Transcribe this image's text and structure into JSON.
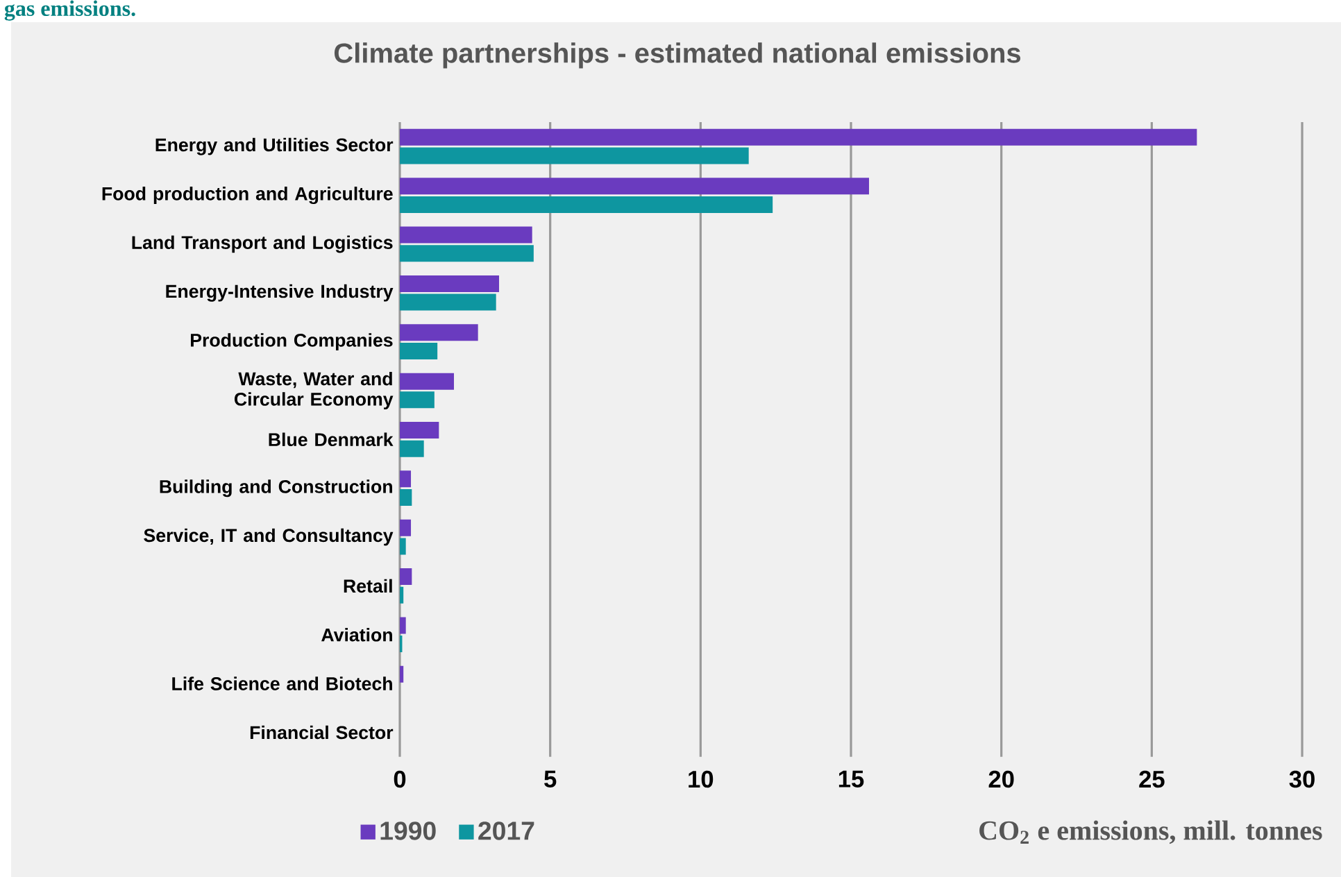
{
  "chart_data": {
    "type": "bar",
    "orientation": "horizontal",
    "title": "Climate partnerships - estimated national emissions",
    "xlabel": "CO$_{2}$ e emissions, mill. tonnes",
    "annotations": [
      "gas emissions."
    ],
    "categories": [
      "Energy and Utilities Sector",
      "Food production and Agriculture",
      "Land Transport and Logistics",
      "Energy-Intensive Industry",
      "Production Companies",
      "Waste, Water and Circular Economy",
      "Blue Denmark",
      "Building and Construction",
      "Service, IT and Consultancy",
      "Retail",
      "Aviation",
      "Life Science and Biotech",
      "Financial Sector"
    ],
    "series": [
      {
        "name": "1990",
        "color": "#6a3bbf",
        "values": [
          26.5,
          15.6,
          4.4,
          3.3,
          2.6,
          1.8,
          1.3,
          0.37,
          0.37,
          0.4,
          0.2,
          0.12,
          0
        ]
      },
      {
        "name": "2017",
        "color": "#0e96a0",
        "values": [
          11.6,
          12.4,
          4.45,
          3.2,
          1.25,
          1.15,
          0.8,
          0.4,
          0.2,
          0.12,
          0.08,
          null,
          0
        ]
      }
    ],
    "xlim": [
      0,
      30
    ],
    "xticks": [
      0,
      5,
      10,
      15,
      20,
      25,
      30
    ],
    "grid": "x",
    "legend": "bottom left"
  }
}
